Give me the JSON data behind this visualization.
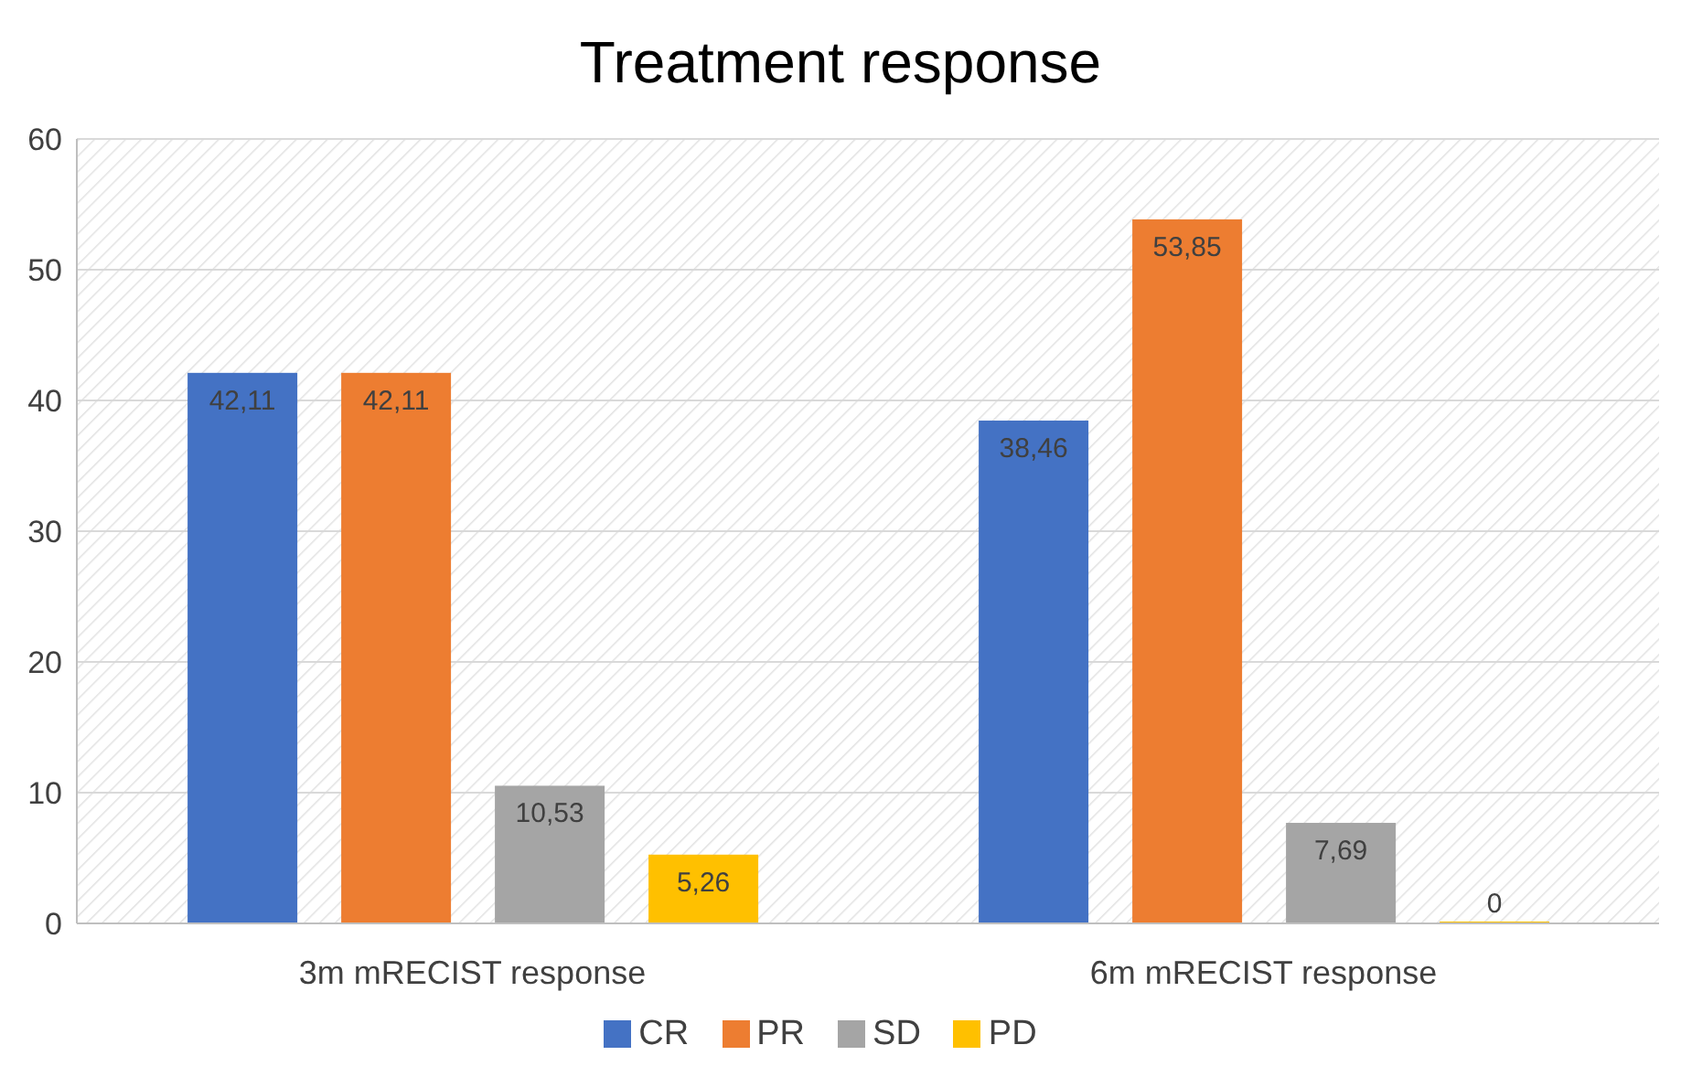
{
  "chart_data": {
    "type": "bar",
    "title": "Treatment response",
    "categories": [
      "3m mRECIST response",
      "6m mRECIST response"
    ],
    "series": [
      {
        "name": "CR",
        "color": "#4472c4",
        "values": [
          42.11,
          38.46
        ],
        "value_labels": [
          "42,11",
          "38,46"
        ]
      },
      {
        "name": "PR",
        "color": "#ed7d31",
        "values": [
          42.11,
          53.85
        ],
        "value_labels": [
          "42,11",
          "53,85"
        ]
      },
      {
        "name": "SD",
        "color": "#a5a5a5",
        "values": [
          10.53,
          7.69
        ],
        "value_labels": [
          "10,53",
          "7,69"
        ]
      },
      {
        "name": "PD",
        "color": "#ffc000",
        "values": [
          5.26,
          0
        ],
        "value_labels": [
          "5,26",
          "0"
        ]
      }
    ],
    "ylim": [
      0,
      60
    ],
    "yticks": [
      0,
      10,
      20,
      30,
      40,
      50,
      60
    ],
    "grid": "y",
    "legend": "bottom"
  }
}
